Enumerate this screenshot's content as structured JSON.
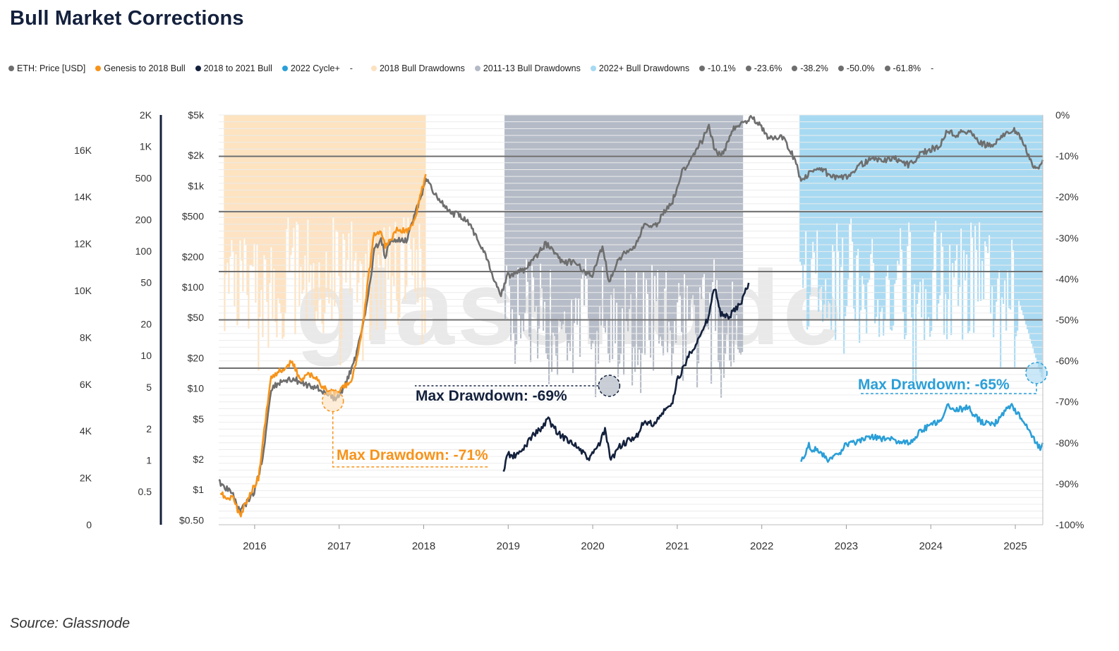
{
  "title": "Bull Market Corrections",
  "source": "Source: Glassnode",
  "watermark": "glassnode",
  "legend": [
    {
      "label": "ETH: Price [USD]",
      "color": "#6e6e6e",
      "kind": "dot"
    },
    {
      "label": "Genesis to 2018 Bull",
      "color": "#f7931a",
      "kind": "dot"
    },
    {
      "label": "2018 to 2021 Bull",
      "color": "#14213d",
      "kind": "dot"
    },
    {
      "label": "2022 Cycle+",
      "color": "#2a9fd8",
      "kind": "dot"
    },
    {
      "label": "",
      "color": "",
      "kind": "dash"
    },
    {
      "label": "2018 Bull Drawdowns",
      "color": "#fde2c0",
      "kind": "dot"
    },
    {
      "label": "2011-13 Bull Drawdowns",
      "color": "#b4bac6",
      "kind": "dot"
    },
    {
      "label": "2022+ Bull Drawdowns",
      "color": "#a6d9f2",
      "kind": "dot"
    },
    {
      "label": "-10.1%",
      "color": "#6e6e6e",
      "kind": "dot"
    },
    {
      "label": "-23.6%",
      "color": "#6e6e6e",
      "kind": "dot"
    },
    {
      "label": "-38.2%",
      "color": "#6e6e6e",
      "kind": "dot"
    },
    {
      "label": "-50.0%",
      "color": "#6e6e6e",
      "kind": "dot"
    },
    {
      "label": "-61.8%",
      "color": "#6e6e6e",
      "kind": "dot"
    },
    {
      "label": "",
      "color": "",
      "kind": "dash"
    }
  ],
  "chart_data": {
    "type": "line",
    "title": "Bull Market Corrections",
    "x_ticks": [
      "2016",
      "2017",
      "2018",
      "2019",
      "2020",
      "2021",
      "2022",
      "2023",
      "2024",
      "2025"
    ],
    "x_range": [
      2015.58,
      2025.33
    ],
    "axes": {
      "ax1": {
        "ticks": [
          "16K",
          "14K",
          "12K",
          "10K",
          "8K",
          "6K",
          "4K",
          "2K",
          "0"
        ],
        "range": [
          0,
          17500
        ]
      },
      "ax2": {
        "ticks": [
          "2K",
          "1K",
          "500",
          "200",
          "100",
          "50",
          "20",
          "10",
          "5",
          "2",
          "1",
          "0.5"
        ],
        "scale": "log"
      },
      "price": {
        "ticks": [
          "$5k",
          "$2k",
          "$1k",
          "$500",
          "$200",
          "$100",
          "$50",
          "$20",
          "$10",
          "$5",
          "$2",
          "$1",
          "$0.50"
        ],
        "scale": "log",
        "range": [
          0.45,
          5000
        ]
      },
      "drawdown": {
        "ticks": [
          "0%",
          "-10%",
          "-20%",
          "-30%",
          "-40%",
          "-50%",
          "-60%",
          "-70%",
          "-80%",
          "-90%",
          "-100%"
        ],
        "range": [
          -100,
          0
        ]
      }
    },
    "fib_levels": [
      -10.1,
      -23.6,
      -38.2,
      -50.0,
      -61.8
    ],
    "drawdown_bands": [
      {
        "name": "2018 Bull Drawdowns",
        "color": "#fde2c0",
        "x_range": [
          2015.65,
          2018.03
        ],
        "max_drawdown": -71
      },
      {
        "name": "2011-13 Bull Drawdowns",
        "color": "#b4bac6",
        "x_range": [
          2018.97,
          2021.78
        ],
        "max_drawdown": -69
      },
      {
        "name": "2022+ Bull Drawdowns",
        "color": "#a6d9f2",
        "x_range": [
          2022.46,
          2025.33
        ],
        "max_drawdown": -65
      }
    ],
    "series": [
      {
        "name": "ETH: Price [USD]",
        "axis": "price",
        "color": "#6e6e6e",
        "points": [
          [
            2015.58,
            1.2
          ],
          [
            2015.75,
            0.9
          ],
          [
            2015.83,
            0.6
          ],
          [
            2016.0,
            0.95
          ],
          [
            2016.1,
            2.0
          ],
          [
            2016.2,
            10
          ],
          [
            2016.35,
            12
          ],
          [
            2016.5,
            12
          ],
          [
            2016.6,
            11
          ],
          [
            2016.75,
            10
          ],
          [
            2016.9,
            8.5
          ],
          [
            2016.95,
            7.8
          ],
          [
            2017.0,
            8.2
          ],
          [
            2017.08,
            11
          ],
          [
            2017.2,
            20
          ],
          [
            2017.35,
            80
          ],
          [
            2017.42,
            230
          ],
          [
            2017.5,
            300
          ],
          [
            2017.55,
            200
          ],
          [
            2017.6,
            260
          ],
          [
            2017.7,
            300
          ],
          [
            2017.8,
            290
          ],
          [
            2017.88,
            450
          ],
          [
            2017.95,
            700
          ],
          [
            2018.0,
            900
          ],
          [
            2018.03,
            1200
          ],
          [
            2018.15,
            800
          ],
          [
            2018.3,
            550
          ],
          [
            2018.45,
            500
          ],
          [
            2018.55,
            420
          ],
          [
            2018.65,
            290
          ],
          [
            2018.75,
            200
          ],
          [
            2018.85,
            110
          ],
          [
            2018.92,
            85
          ],
          [
            2019.0,
            130
          ],
          [
            2019.1,
            140
          ],
          [
            2019.2,
            150
          ],
          [
            2019.3,
            180
          ],
          [
            2019.45,
            270
          ],
          [
            2019.55,
            220
          ],
          [
            2019.65,
            175
          ],
          [
            2019.8,
            180
          ],
          [
            2019.9,
            140
          ],
          [
            2020.0,
            130
          ],
          [
            2020.12,
            250
          ],
          [
            2020.2,
            110
          ],
          [
            2020.3,
            180
          ],
          [
            2020.4,
            230
          ],
          [
            2020.5,
            240
          ],
          [
            2020.6,
            400
          ],
          [
            2020.75,
            400
          ],
          [
            2020.85,
            550
          ],
          [
            2020.95,
            700
          ],
          [
            2021.05,
            1300
          ],
          [
            2021.15,
            1800
          ],
          [
            2021.3,
            2800
          ],
          [
            2021.38,
            4000
          ],
          [
            2021.45,
            2200
          ],
          [
            2021.55,
            2000
          ],
          [
            2021.65,
            3500
          ],
          [
            2021.8,
            4300
          ],
          [
            2021.9,
            4700
          ],
          [
            2022.0,
            3800
          ],
          [
            2022.1,
            2900
          ],
          [
            2022.25,
            3000
          ],
          [
            2022.4,
            1800
          ],
          [
            2022.47,
            1100
          ],
          [
            2022.55,
            1300
          ],
          [
            2022.7,
            1500
          ],
          [
            2022.85,
            1200
          ],
          [
            2023.0,
            1200
          ],
          [
            2023.15,
            1600
          ],
          [
            2023.3,
            1800
          ],
          [
            2023.45,
            1800
          ],
          [
            2023.6,
            1850
          ],
          [
            2023.75,
            1600
          ],
          [
            2023.9,
            2100
          ],
          [
            2024.0,
            2300
          ],
          [
            2024.1,
            2400
          ],
          [
            2024.2,
            3500
          ],
          [
            2024.3,
            3200
          ],
          [
            2024.45,
            3500
          ],
          [
            2024.6,
            2600
          ],
          [
            2024.75,
            2450
          ],
          [
            2024.9,
            3500
          ],
          [
            2024.98,
            3600
          ],
          [
            2025.1,
            2700
          ],
          [
            2025.2,
            1600
          ],
          [
            2025.27,
            1500
          ],
          [
            2025.33,
            1800
          ]
        ]
      },
      {
        "name": "Genesis to 2018 Bull",
        "axis": "price",
        "color": "#f7931a",
        "points": [
          [
            2015.6,
            0.9
          ],
          [
            2015.75,
            0.8
          ],
          [
            2015.83,
            0.55
          ],
          [
            2015.95,
            0.9
          ],
          [
            2016.05,
            1.3
          ],
          [
            2016.12,
            4
          ],
          [
            2016.2,
            13
          ],
          [
            2016.3,
            15
          ],
          [
            2016.45,
            18
          ],
          [
            2016.55,
            12
          ],
          [
            2016.65,
            14
          ],
          [
            2016.75,
            12
          ],
          [
            2016.85,
            9.5
          ],
          [
            2016.95,
            9
          ],
          [
            2017.05,
            10
          ],
          [
            2017.15,
            12
          ],
          [
            2017.2,
            17
          ],
          [
            2017.3,
            50
          ],
          [
            2017.35,
            120
          ],
          [
            2017.42,
            340
          ],
          [
            2017.5,
            350
          ],
          [
            2017.55,
            250
          ],
          [
            2017.62,
            300
          ],
          [
            2017.7,
            380
          ],
          [
            2017.8,
            350
          ],
          [
            2017.9,
            470
          ],
          [
            2017.95,
            700
          ],
          [
            2018.0,
            1000
          ],
          [
            2018.03,
            1300
          ]
        ]
      },
      {
        "name": "2018 to 2021 Bull",
        "axis": "price",
        "color": "#14213d",
        "points": [
          [
            2018.95,
            1.5
          ],
          [
            2019.0,
            2.3
          ],
          [
            2019.05,
            2.1
          ],
          [
            2019.15,
            2.3
          ],
          [
            2019.3,
            3.5
          ],
          [
            2019.4,
            4.0
          ],
          [
            2019.48,
            5.0
          ],
          [
            2019.55,
            4.0
          ],
          [
            2019.65,
            3.3
          ],
          [
            2019.75,
            3.0
          ],
          [
            2019.85,
            2.5
          ],
          [
            2019.95,
            2.0
          ],
          [
            2020.0,
            2.2
          ],
          [
            2020.1,
            3.0
          ],
          [
            2020.15,
            3.9
          ],
          [
            2020.22,
            1.9
          ],
          [
            2020.3,
            2.6
          ],
          [
            2020.42,
            3.0
          ],
          [
            2020.5,
            3.1
          ],
          [
            2020.6,
            4.5
          ],
          [
            2020.75,
            4.5
          ],
          [
            2020.85,
            6.0
          ],
          [
            2020.95,
            7.0
          ],
          [
            2021.0,
            12
          ],
          [
            2021.08,
            16
          ],
          [
            2021.15,
            22
          ],
          [
            2021.3,
            35
          ],
          [
            2021.37,
            50
          ],
          [
            2021.45,
            100
          ],
          [
            2021.52,
            55
          ],
          [
            2021.6,
            50
          ],
          [
            2021.7,
            60
          ],
          [
            2021.78,
            75
          ],
          [
            2021.85,
            110
          ]
        ]
      },
      {
        "name": "2022 Cycle+",
        "axis": "drawdown",
        "color": "#2a9fd8",
        "points": [
          [
            2022.47,
            -84.5
          ],
          [
            2022.5,
            -84.0
          ],
          [
            2022.55,
            -80.5
          ],
          [
            2022.6,
            -81.5
          ],
          [
            2022.7,
            -82.0
          ],
          [
            2022.8,
            -84.5
          ],
          [
            2022.9,
            -83.0
          ],
          [
            2023.0,
            -80.5
          ],
          [
            2023.15,
            -79.5
          ],
          [
            2023.3,
            -78.5
          ],
          [
            2023.45,
            -79.0
          ],
          [
            2023.6,
            -79.5
          ],
          [
            2023.75,
            -80.0
          ],
          [
            2023.9,
            -77.0
          ],
          [
            2024.0,
            -75.5
          ],
          [
            2024.1,
            -75.0
          ],
          [
            2024.2,
            -71.0
          ],
          [
            2024.3,
            -72.0
          ],
          [
            2024.45,
            -71.5
          ],
          [
            2024.55,
            -74.0
          ],
          [
            2024.6,
            -75.0
          ],
          [
            2024.75,
            -75.5
          ],
          [
            2024.85,
            -73.0
          ],
          [
            2024.95,
            -71.0
          ],
          [
            2025.05,
            -73.0
          ],
          [
            2025.15,
            -76.0
          ],
          [
            2025.25,
            -80.0
          ],
          [
            2025.3,
            -81.0
          ],
          [
            2025.33,
            -80.0
          ]
        ]
      }
    ],
    "annotations": [
      {
        "text": "Max Drawdown: -71%",
        "color": "#f7931a",
        "x": 2016.93,
        "drawdown": -71
      },
      {
        "text": "Max Drawdown: -69%",
        "color": "#14213d",
        "x": 2020.2,
        "drawdown": -69
      },
      {
        "text": "Max Drawdown: -65%",
        "color": "#2a9fd8",
        "x": 2025.27,
        "drawdown": -65
      }
    ]
  }
}
